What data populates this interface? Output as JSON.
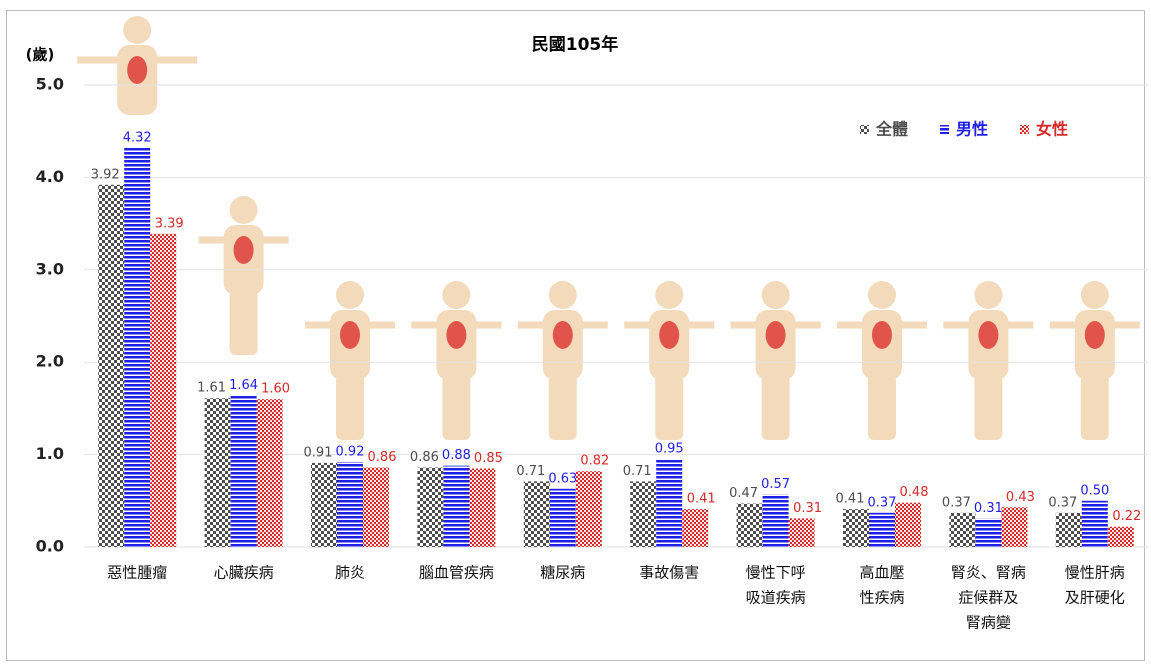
{
  "chart_data": {
    "type": "bar",
    "title": "民國105年",
    "y_label": "(歲)",
    "categories": [
      [
        "惡性腫瘤"
      ],
      [
        "心臟疾病"
      ],
      [
        "肺炎"
      ],
      [
        "腦血管疾病"
      ],
      [
        "糖尿病"
      ],
      [
        "事故傷害"
      ],
      [
        "慢性下呼",
        "吸道疾病"
      ],
      [
        "高血壓",
        "性疾病"
      ],
      [
        "腎炎、腎病",
        "症候群及",
        "腎病變"
      ],
      [
        "慢性肝病",
        "及肝硬化"
      ]
    ],
    "series": [
      {
        "name": "全體",
        "color": "#4d4d4d",
        "values": [
          3.92,
          1.61,
          0.91,
          0.86,
          0.71,
          0.71,
          0.47,
          0.41,
          0.37,
          0.37
        ],
        "value_labels": [
          "3.92",
          "1.61",
          "0.91",
          "0.86",
          "0.71",
          "0.71",
          "0.47",
          "0.41",
          "0.37",
          "0.37"
        ]
      },
      {
        "name": "男性",
        "color": "#1f1fe6",
        "values": [
          4.32,
          1.64,
          0.92,
          0.88,
          0.63,
          0.95,
          0.57,
          0.37,
          0.31,
          0.5
        ],
        "value_labels": [
          "4.32",
          "1.64",
          "0.92",
          "0.88",
          "0.63",
          "0.95",
          "0.57",
          "0.37",
          "0.31",
          "0.50"
        ]
      },
      {
        "name": "女性",
        "color": "#d42a2a",
        "values": [
          3.39,
          1.6,
          0.86,
          0.85,
          0.82,
          0.41,
          0.31,
          0.48,
          0.43,
          0.22
        ],
        "value_labels": [
          "3.39",
          "1.60",
          "0.86",
          "0.85",
          "0.82",
          "0.41",
          "0.31",
          "0.48",
          "0.43",
          "0.22"
        ]
      }
    ],
    "ylim": [
      0,
      5
    ],
    "yticks": [
      {
        "value": 0,
        "label": "0.0"
      },
      {
        "value": 1,
        "label": "1.0"
      },
      {
        "value": 2,
        "label": "2.0"
      },
      {
        "value": 3,
        "label": "3.0"
      },
      {
        "value": 4,
        "label": "4.0"
      },
      {
        "value": 5,
        "label": "5.0"
      }
    ],
    "grid": true,
    "legend": "top-right"
  }
}
